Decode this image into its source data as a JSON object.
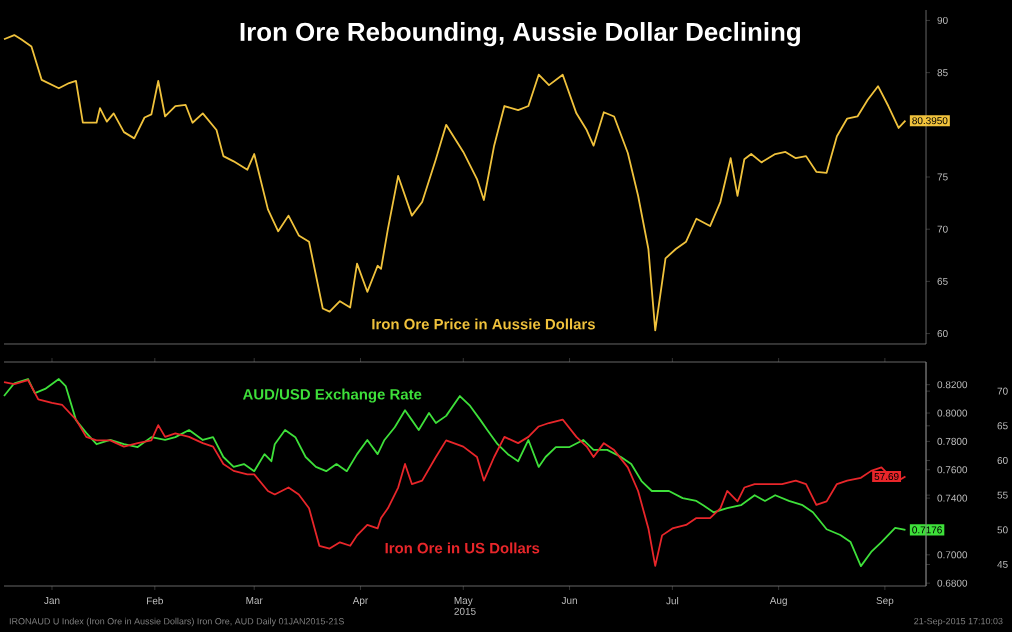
{
  "chart_data": [
    {
      "type": "line",
      "title": "Iron Ore Rebounding, Aussie Dollar Declining",
      "xlim": [
        "2015-01-01",
        "2015-09-27"
      ],
      "ylim": [
        59,
        91
      ],
      "yticks": [
        60,
        65,
        70,
        75,
        85,
        90
      ],
      "tick_labels": "y",
      "series": [
        {
          "name": "Iron Ore Price in Aussie Dollars",
          "color": "#f0c23c",
          "x": [
            "2015-01-01",
            "2015-01-04",
            "2015-01-06",
            "2015-01-09",
            "2015-01-12",
            "2015-01-17",
            "2015-01-20",
            "2015-01-22",
            "2015-01-24",
            "2015-01-28",
            "2015-01-29",
            "2015-01-31",
            "2015-02-02",
            "2015-02-05",
            "2015-02-08",
            "2015-02-11",
            "2015-02-13",
            "2015-02-15",
            "2015-02-17",
            "2015-02-20",
            "2015-02-23",
            "2015-02-25",
            "2015-02-28",
            "2015-03-04",
            "2015-03-06",
            "2015-03-09",
            "2015-03-13",
            "2015-03-15",
            "2015-03-19",
            "2015-03-22",
            "2015-03-25",
            "2015-03-28",
            "2015-03-31",
            "2015-04-04",
            "2015-04-06",
            "2015-04-09",
            "2015-04-12",
            "2015-04-14",
            "2015-04-17",
            "2015-04-20",
            "2015-04-21",
            "2015-04-23",
            "2015-04-26",
            "2015-04-30",
            "2015-05-03",
            "2015-05-07",
            "2015-05-10",
            "2015-05-15",
            "2015-05-19",
            "2015-05-21",
            "2015-05-24",
            "2015-05-27",
            "2015-05-31",
            "2015-06-03",
            "2015-06-06",
            "2015-06-09",
            "2015-06-13",
            "2015-06-17",
            "2015-06-20",
            "2015-06-22",
            "2015-06-25",
            "2015-06-28",
            "2015-07-02",
            "2015-07-05",
            "2015-07-08",
            "2015-07-10",
            "2015-07-13",
            "2015-07-16",
            "2015-07-19",
            "2015-07-22",
            "2015-07-26",
            "2015-07-29",
            "2015-08-01",
            "2015-08-03",
            "2015-08-05",
            "2015-08-07",
            "2015-08-10",
            "2015-08-14",
            "2015-08-17",
            "2015-08-20",
            "2015-08-23",
            "2015-08-26",
            "2015-08-29",
            "2015-09-01",
            "2015-09-04",
            "2015-09-07",
            "2015-09-10",
            "2015-09-13",
            "2015-09-16",
            "2015-09-19",
            "2015-09-21"
          ],
          "values": [
            88.2,
            88.6,
            88.2,
            87.5,
            84.3,
            83.5,
            84.0,
            84.2,
            80.2,
            80.2,
            81.6,
            80.3,
            81.1,
            79.3,
            78.7,
            80.7,
            81.0,
            84.2,
            80.8,
            81.8,
            81.9,
            80.2,
            81.1,
            79.5,
            77.0,
            76.5,
            75.7,
            77.2,
            71.9,
            69.8,
            71.3,
            69.4,
            68.8,
            62.4,
            62.1,
            63.1,
            62.5,
            66.7,
            64.0,
            66.5,
            66.2,
            70.0,
            75.1,
            71.3,
            72.6,
            76.7,
            80.0,
            77.4,
            74.8,
            72.8,
            78.0,
            81.8,
            81.4,
            81.8,
            84.8,
            83.8,
            84.8,
            81.1,
            79.5,
            78.0,
            81.2,
            80.8,
            77.3,
            73.2,
            68.1,
            60.3,
            67.2,
            68.1,
            68.8,
            71.0,
            70.3,
            72.6,
            76.8,
            73.2,
            76.7,
            77.2,
            76.4,
            77.2,
            77.4,
            76.8,
            77.0,
            75.5,
            75.4,
            78.9,
            80.6,
            80.8,
            82.4,
            83.7,
            81.8,
            79.7,
            80.395
          ],
          "value_labels": [
            null,
            null,
            null,
            null,
            null,
            null,
            null,
            null,
            null,
            null,
            null,
            null,
            null,
            null,
            null,
            null,
            null,
            null,
            null,
            null,
            null,
            null,
            null,
            null,
            null,
            null,
            null,
            null,
            null,
            null,
            null,
            null,
            null,
            null,
            null,
            null,
            null,
            null,
            null,
            null,
            null,
            null,
            null,
            null,
            null,
            null,
            null,
            null,
            null,
            null,
            null,
            null,
            null,
            null,
            null,
            null,
            null,
            null,
            null,
            null,
            null,
            null,
            null,
            null,
            null,
            null,
            null,
            null,
            null,
            null,
            null,
            null,
            null,
            null,
            null,
            null,
            null,
            null,
            null,
            null,
            null,
            null,
            null,
            null,
            null,
            null,
            null,
            null,
            null,
            null,
            "80.3950"
          ]
        }
      ]
    },
    {
      "type": "line",
      "xlabel": "2015",
      "xlim": [
        "2015-01-01",
        "2015-09-27"
      ],
      "xticks": [
        {
          "value": "2015-01-15",
          "label": "Jan"
        },
        {
          "value": "2015-02-14",
          "label": "Feb"
        },
        {
          "value": "2015-03-15",
          "label": "Mar"
        },
        {
          "value": "2015-04-15",
          "label": "Apr"
        },
        {
          "value": "2015-05-15",
          "label": "May"
        },
        {
          "value": "2015-06-15",
          "label": "Jun"
        },
        {
          "value": "2015-07-15",
          "label": "Jul"
        },
        {
          "value": "2015-08-15",
          "label": "Aug"
        },
        {
          "value": "2015-09-15",
          "label": "Sep"
        }
      ],
      "ylim": [
        0.678,
        0.836
      ],
      "yticks": [
        {
          "value": 0.68,
          "label": "0.6800"
        },
        {
          "value": 0.7,
          "label": "0.7000"
        },
        {
          "value": 0.74,
          "label": "0.7400"
        },
        {
          "value": 0.76,
          "label": "0.7600"
        },
        {
          "value": 0.78,
          "label": "0.7800"
        },
        {
          "value": 0.8,
          "label": "0.8000"
        },
        {
          "value": 0.82,
          "label": "0.8200"
        }
      ],
      "y2lim": [
        41.9,
        74.2
      ],
      "y2ticks": [
        45,
        50,
        55,
        60,
        65,
        70
      ],
      "annotations": [
        "IRONAUD U Index (Iron Ore in Aussie Dollars) Iron Ore, AUD  Daily 01JAN2015-21S",
        "21-Sep-2015 17:10:03"
      ],
      "series": [
        {
          "name": "AUD/USD Exchange Rate",
          "color": "#3ee03a",
          "axis": "y",
          "x": [
            "2015-01-01",
            "2015-01-04",
            "2015-01-08",
            "2015-01-10",
            "2015-01-13",
            "2015-01-17",
            "2015-01-19",
            "2015-01-22",
            "2015-01-25",
            "2015-01-28",
            "2015-02-01",
            "2015-02-05",
            "2015-02-09",
            "2015-02-13",
            "2015-02-17",
            "2015-02-20",
            "2015-02-24",
            "2015-02-28",
            "2015-03-03",
            "2015-03-06",
            "2015-03-09",
            "2015-03-12",
            "2015-03-15",
            "2015-03-18",
            "2015-03-20",
            "2015-03-21",
            "2015-03-24",
            "2015-03-27",
            "2015-03-30",
            "2015-04-02",
            "2015-04-05",
            "2015-04-08",
            "2015-04-11",
            "2015-04-14",
            "2015-04-17",
            "2015-04-20",
            "2015-04-22",
            "2015-04-25",
            "2015-04-28",
            "2015-04-30",
            "2015-05-02",
            "2015-05-05",
            "2015-05-07",
            "2015-05-10",
            "2015-05-14",
            "2015-05-17",
            "2015-05-20",
            "2015-05-22",
            "2015-05-25",
            "2015-05-28",
            "2015-05-31",
            "2015-06-03",
            "2015-06-06",
            "2015-06-08",
            "2015-06-11",
            "2015-06-15",
            "2015-06-19",
            "2015-06-22",
            "2015-06-26",
            "2015-06-30",
            "2015-07-03",
            "2015-07-06",
            "2015-07-09",
            "2015-07-14",
            "2015-07-18",
            "2015-07-22",
            "2015-07-24",
            "2015-07-27",
            "2015-07-31",
            "2015-08-04",
            "2015-08-08",
            "2015-08-11",
            "2015-08-14",
            "2015-08-18",
            "2015-08-22",
            "2015-08-25",
            "2015-08-29",
            "2015-09-02",
            "2015-09-05",
            "2015-09-08",
            "2015-09-11",
            "2015-09-14",
            "2015-09-18",
            "2015-09-21"
          ],
          "values": [
            0.812,
            0.821,
            0.824,
            0.814,
            0.817,
            0.824,
            0.819,
            0.795,
            0.786,
            0.778,
            0.781,
            0.778,
            0.776,
            0.783,
            0.781,
            0.783,
            0.788,
            0.781,
            0.783,
            0.769,
            0.762,
            0.764,
            0.759,
            0.771,
            0.766,
            0.778,
            0.788,
            0.783,
            0.769,
            0.762,
            0.759,
            0.764,
            0.759,
            0.771,
            0.781,
            0.771,
            0.781,
            0.79,
            0.802,
            0.795,
            0.788,
            0.8,
            0.793,
            0.798,
            0.812,
            0.805,
            0.795,
            0.788,
            0.778,
            0.771,
            0.766,
            0.781,
            0.762,
            0.769,
            0.776,
            0.776,
            0.781,
            0.774,
            0.774,
            0.769,
            0.764,
            0.752,
            0.745,
            0.745,
            0.74,
            0.738,
            0.735,
            0.73,
            0.733,
            0.735,
            0.742,
            0.738,
            0.742,
            0.738,
            0.735,
            0.73,
            0.718,
            0.714,
            0.709,
            0.692,
            0.702,
            0.709,
            0.719,
            0.7176
          ],
          "value_labels": [
            null,
            null,
            null,
            null,
            null,
            null,
            null,
            null,
            null,
            null,
            null,
            null,
            null,
            null,
            null,
            null,
            null,
            null,
            null,
            null,
            null,
            null,
            null,
            null,
            null,
            null,
            null,
            null,
            null,
            null,
            null,
            null,
            null,
            null,
            null,
            null,
            null,
            null,
            null,
            null,
            null,
            null,
            null,
            null,
            null,
            null,
            null,
            null,
            null,
            null,
            null,
            null,
            null,
            null,
            null,
            null,
            null,
            null,
            null,
            null,
            null,
            null,
            null,
            null,
            null,
            null,
            null,
            null,
            null,
            null,
            null,
            null,
            null,
            null,
            null,
            null,
            null,
            null,
            null,
            null,
            null,
            null,
            null,
            "0.7176"
          ]
        },
        {
          "name": "Iron Ore in US Dollars",
          "color": "#e8262a",
          "axis": "y2",
          "x": [
            "2015-01-01",
            "2015-01-04",
            "2015-01-08",
            "2015-01-11",
            "2015-01-15",
            "2015-01-18",
            "2015-01-22",
            "2015-01-25",
            "2015-01-28",
            "2015-02-01",
            "2015-02-05",
            "2015-02-09",
            "2015-02-13",
            "2015-02-15",
            "2015-02-17",
            "2015-02-20",
            "2015-02-24",
            "2015-02-28",
            "2015-03-03",
            "2015-03-06",
            "2015-03-09",
            "2015-03-13",
            "2015-03-15",
            "2015-03-19",
            "2015-03-21",
            "2015-03-25",
            "2015-03-28",
            "2015-03-31",
            "2015-04-03",
            "2015-04-06",
            "2015-04-09",
            "2015-04-12",
            "2015-04-14",
            "2015-04-17",
            "2015-04-20",
            "2015-04-21",
            "2015-04-23",
            "2015-04-26",
            "2015-04-28",
            "2015-04-30",
            "2015-05-03",
            "2015-05-07",
            "2015-05-10",
            "2015-05-15",
            "2015-05-19",
            "2015-05-21",
            "2015-05-24",
            "2015-05-27",
            "2015-05-31",
            "2015-06-03",
            "2015-06-06",
            "2015-06-09",
            "2015-06-13",
            "2015-06-17",
            "2015-06-20",
            "2015-06-22",
            "2015-06-25",
            "2015-06-28",
            "2015-07-02",
            "2015-07-05",
            "2015-07-08",
            "2015-07-10",
            "2015-07-12",
            "2015-07-15",
            "2015-07-19",
            "2015-07-22",
            "2015-07-26",
            "2015-07-29",
            "2015-07-31",
            "2015-08-03",
            "2015-08-05",
            "2015-08-08",
            "2015-08-12",
            "2015-08-16",
            "2015-08-20",
            "2015-08-23",
            "2015-08-26",
            "2015-08-29",
            "2015-09-01",
            "2015-09-04",
            "2015-09-08",
            "2015-09-11",
            "2015-09-14",
            "2015-09-17",
            "2015-09-19",
            "2015-09-21"
          ],
          "values": [
            71.3,
            71.0,
            71.6,
            68.8,
            68.3,
            68.0,
            65.9,
            63.4,
            62.9,
            62.9,
            62.0,
            62.5,
            62.9,
            65.1,
            63.4,
            63.9,
            63.4,
            62.5,
            62.0,
            59.5,
            58.5,
            58.0,
            58.0,
            55.6,
            55.1,
            56.1,
            55.1,
            53.1,
            47.7,
            47.3,
            48.2,
            47.7,
            49.2,
            50.7,
            50.2,
            51.7,
            53.1,
            56.1,
            59.5,
            56.6,
            57.1,
            60.5,
            62.9,
            62.0,
            60.5,
            57.1,
            60.5,
            63.4,
            62.5,
            63.4,
            64.9,
            65.4,
            65.9,
            63.4,
            62.0,
            60.5,
            62.5,
            61.5,
            59.0,
            55.6,
            50.2,
            44.8,
            49.2,
            50.2,
            50.7,
            51.7,
            51.7,
            53.1,
            55.6,
            54.1,
            56.1,
            56.6,
            56.6,
            56.6,
            57.1,
            56.6,
            53.6,
            54.1,
            56.6,
            57.1,
            57.5,
            58.5,
            59.0,
            57.5,
            57.1,
            57.69
          ],
          "value_labels": [
            null,
            null,
            null,
            null,
            null,
            null,
            null,
            null,
            null,
            null,
            null,
            null,
            null,
            null,
            null,
            null,
            null,
            null,
            null,
            null,
            null,
            null,
            null,
            null,
            null,
            null,
            null,
            null,
            null,
            null,
            null,
            null,
            null,
            null,
            null,
            null,
            null,
            null,
            null,
            null,
            null,
            null,
            null,
            null,
            null,
            null,
            null,
            null,
            null,
            null,
            null,
            null,
            null,
            null,
            null,
            null,
            null,
            null,
            null,
            null,
            null,
            null,
            null,
            null,
            null,
            null,
            null,
            null,
            null,
            null,
            null,
            null,
            null,
            null,
            null,
            null,
            null,
            null,
            null,
            null,
            null,
            null,
            null,
            null,
            null,
            "57.69"
          ]
        }
      ]
    }
  ]
}
